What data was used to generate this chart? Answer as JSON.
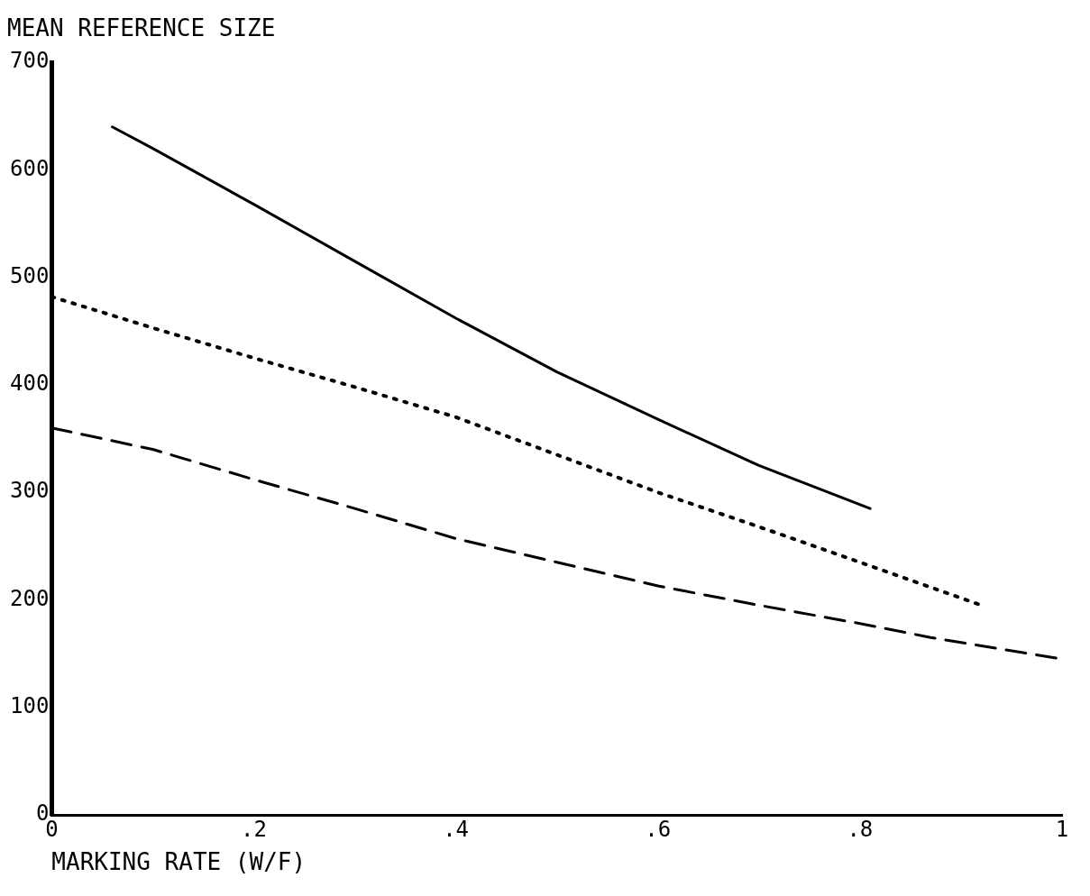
{
  "chart_data": {
    "type": "line",
    "xlabel": "MARKING RATE (W/F)",
    "ylabel": "MEAN REFERENCE SIZE",
    "xlim": [
      0,
      1
    ],
    "ylim": [
      0,
      700
    ],
    "xticks": [
      0,
      {
        "value": 0.2,
        "label": ".2"
      },
      {
        "value": 0.4,
        "label": ".4"
      },
      {
        "value": 0.6,
        "label": ".6"
      },
      {
        "value": 0.8,
        "label": ".8"
      },
      1
    ],
    "yticks": [
      0,
      100,
      200,
      300,
      400,
      500,
      600,
      700
    ],
    "grid": false,
    "legend": false,
    "marker": "none",
    "series": [
      {
        "color": "#000000",
        "line_style": "solid",
        "x": [
          0.06,
          0.1,
          0.2,
          0.3,
          0.4,
          0.5,
          0.6,
          0.7,
          0.81
        ],
        "values": [
          640,
          620,
          568,
          515,
          462,
          412,
          368,
          325,
          285
        ]
      },
      {
        "color": "#000000",
        "line_style": "dotted",
        "x": [
          0,
          0.1,
          0.2,
          0.3,
          0.4,
          0.5,
          0.6,
          0.7,
          0.8,
          0.92
        ],
        "values": [
          482,
          453,
          425,
          398,
          370,
          335,
          300,
          268,
          235,
          195
        ]
      },
      {
        "color": "#000000",
        "line_style": "dashed",
        "x": [
          0,
          0.1,
          0.2,
          0.3,
          0.4,
          0.5,
          0.6,
          0.7,
          0.8,
          0.87,
          1
        ],
        "values": [
          360,
          340,
          312,
          285,
          257,
          235,
          213,
          195,
          178,
          165,
          145
        ]
      }
    ]
  }
}
